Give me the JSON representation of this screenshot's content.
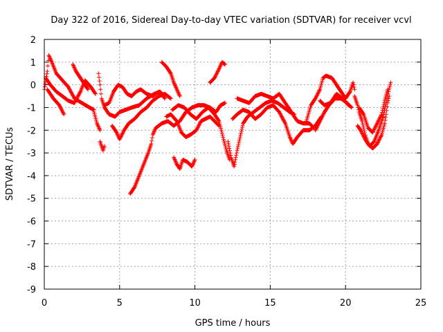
{
  "chart_data": {
    "type": "scatter",
    "title": "Day 322 of 2016, Sidereal Day-to-day VTEC variation (SDTVAR) for receiver vcvl",
    "xlabel": "GPS time / hours",
    "ylabel": "SDTVAR / TECUs",
    "xlim": [
      0,
      25
    ],
    "ylim": [
      -9,
      2
    ],
    "xticks": [
      "0",
      "5",
      "10",
      "15",
      "20",
      "25"
    ],
    "yticks": [
      "2",
      "1",
      "0",
      "-1",
      "-2",
      "-3",
      "-4",
      "-5",
      "-6",
      "-7",
      "-8",
      "-9"
    ],
    "grid": true,
    "marker": "+",
    "color": "#ff0000",
    "series": [
      {
        "name": "SDTVAR",
        "tracks": [
          [
            [
              0.0,
              -0.2
            ],
            [
              0.2,
              0.6
            ],
            [
              0.3,
              1.3
            ],
            [
              0.5,
              1.0
            ],
            [
              0.8,
              0.5
            ],
            [
              1.2,
              0.2
            ],
            [
              1.6,
              -0.1
            ],
            [
              2.0,
              -0.6
            ],
            [
              2.5,
              -0.8
            ],
            [
              3.0,
              -1.0
            ],
            [
              3.3,
              -1.1
            ]
          ],
          [
            [
              0.1,
              0.3
            ],
            [
              0.4,
              0.0
            ],
            [
              0.8,
              -0.3
            ],
            [
              1.2,
              -0.5
            ],
            [
              1.6,
              -0.7
            ],
            [
              2.0,
              -0.8
            ],
            [
              2.4,
              -0.3
            ],
            [
              2.7,
              0.2
            ],
            [
              3.1,
              -0.1
            ],
            [
              3.4,
              -0.4
            ]
          ],
          [
            [
              0.2,
              -0.2
            ],
            [
              0.6,
              -0.6
            ],
            [
              1.0,
              -0.9
            ],
            [
              1.3,
              -1.3
            ]
          ],
          [
            [
              1.9,
              0.9
            ],
            [
              2.1,
              0.6
            ],
            [
              2.4,
              0.3
            ],
            [
              2.7,
              0.0
            ],
            [
              2.9,
              -0.2
            ]
          ],
          [
            [
              3.3,
              -1.2
            ],
            [
              3.5,
              -1.7
            ],
            [
              3.7,
              -2.0
            ]
          ],
          [
            [
              3.6,
              0.5
            ],
            [
              3.7,
              0.0
            ],
            [
              3.8,
              -0.6
            ],
            [
              4.0,
              -1.0
            ],
            [
              4.3,
              -1.3
            ],
            [
              4.7,
              -1.4
            ],
            [
              5.0,
              -1.2
            ],
            [
              5.4,
              -1.1
            ],
            [
              5.8,
              -1.0
            ],
            [
              6.3,
              -0.9
            ],
            [
              6.8,
              -0.6
            ],
            [
              7.3,
              -0.4
            ],
            [
              7.7,
              -0.3
            ],
            [
              8.0,
              -0.6
            ]
          ],
          [
            [
              3.7,
              -2.5
            ],
            [
              3.9,
              -2.9
            ],
            [
              4.0,
              -2.7
            ]
          ],
          [
            [
              4.0,
              -0.9
            ],
            [
              4.3,
              -0.8
            ],
            [
              4.6,
              -0.3
            ],
            [
              4.9,
              0.0
            ],
            [
              5.2,
              -0.1
            ],
            [
              5.5,
              -0.4
            ],
            [
              5.8,
              -0.5
            ],
            [
              6.1,
              -0.3
            ],
            [
              6.4,
              -0.2
            ],
            [
              6.8,
              -0.4
            ],
            [
              7.2,
              -0.5
            ],
            [
              7.6,
              -0.3
            ],
            [
              7.9,
              -0.5
            ]
          ],
          [
            [
              4.5,
              -1.8
            ],
            [
              4.8,
              -2.1
            ],
            [
              5.0,
              -2.4
            ],
            [
              5.3,
              -2.0
            ],
            [
              5.6,
              -1.7
            ],
            [
              6.0,
              -1.5
            ],
            [
              6.4,
              -1.2
            ],
            [
              6.8,
              -1.0
            ],
            [
              7.2,
              -0.7
            ],
            [
              7.6,
              -0.5
            ],
            [
              8.0,
              -0.4
            ],
            [
              8.4,
              -0.6
            ]
          ],
          [
            [
              5.7,
              -4.8
            ],
            [
              6.0,
              -4.5
            ],
            [
              6.3,
              -4.0
            ],
            [
              6.6,
              -3.5
            ],
            [
              6.9,
              -3.0
            ],
            [
              7.1,
              -2.6
            ],
            [
              7.2,
              -2.2
            ],
            [
              7.4,
              -1.9
            ],
            [
              7.8,
              -1.7
            ],
            [
              8.2,
              -1.6
            ],
            [
              8.6,
              -1.8
            ],
            [
              9.0,
              -1.6
            ],
            [
              9.4,
              -1.2
            ],
            [
              9.8,
              -1.0
            ],
            [
              10.2,
              -0.9
            ],
            [
              10.6,
              -0.9
            ],
            [
              11.0,
              -1.0
            ],
            [
              11.4,
              -1.2
            ],
            [
              11.7,
              -0.9
            ],
            [
              12.0,
              -0.8
            ]
          ],
          [
            [
              7.8,
              1.0
            ],
            [
              8.1,
              0.8
            ],
            [
              8.4,
              0.5
            ],
            [
              8.6,
              0.1
            ],
            [
              8.8,
              -0.2
            ],
            [
              9.0,
              -0.5
            ]
          ],
          [
            [
              8.1,
              -1.4
            ],
            [
              8.4,
              -1.3
            ],
            [
              8.8,
              -1.6
            ],
            [
              9.1,
              -2.1
            ],
            [
              9.4,
              -2.3
            ],
            [
              9.7,
              -2.2
            ],
            [
              10.1,
              -2.0
            ],
            [
              10.4,
              -1.6
            ],
            [
              10.7,
              -1.5
            ],
            [
              11.0,
              -1.4
            ],
            [
              11.3,
              -1.6
            ],
            [
              11.6,
              -1.8
            ]
          ],
          [
            [
              8.6,
              -3.2
            ],
            [
              8.8,
              -3.5
            ],
            [
              9.0,
              -3.7
            ],
            [
              9.2,
              -3.3
            ],
            [
              9.5,
              -3.4
            ],
            [
              9.8,
              -3.6
            ],
            [
              10.0,
              -3.3
            ]
          ],
          [
            [
              8.5,
              -1.1
            ],
            [
              8.9,
              -0.9
            ],
            [
              9.3,
              -1.0
            ],
            [
              9.7,
              -1.3
            ],
            [
              10.1,
              -1.5
            ],
            [
              10.5,
              -1.2
            ],
            [
              10.9,
              -1.0
            ],
            [
              11.3,
              -1.3
            ],
            [
              11.6,
              -1.6
            ],
            [
              11.9,
              -2.4
            ],
            [
              12.1,
              -2.9
            ],
            [
              12.3,
              -3.3
            ]
          ],
          [
            [
              11.0,
              0.1
            ],
            [
              11.3,
              0.3
            ],
            [
              11.6,
              0.7
            ],
            [
              11.8,
              1.0
            ],
            [
              12.0,
              0.9
            ]
          ],
          [
            [
              12.2,
              -2.5
            ],
            [
              12.4,
              -3.2
            ],
            [
              12.6,
              -3.6
            ],
            [
              12.8,
              -2.9
            ],
            [
              13.0,
              -2.3
            ],
            [
              13.2,
              -1.7
            ],
            [
              13.5,
              -1.4
            ],
            [
              13.9,
              -1.2
            ],
            [
              14.3,
              -1.0
            ],
            [
              14.7,
              -0.8
            ],
            [
              15.1,
              -0.7
            ],
            [
              15.5,
              -0.8
            ],
            [
              15.9,
              -1.0
            ],
            [
              16.3,
              -1.2
            ],
            [
              16.6,
              -1.3
            ]
          ],
          [
            [
              12.5,
              -1.5
            ],
            [
              12.8,
              -1.3
            ],
            [
              13.2,
              -1.1
            ],
            [
              13.6,
              -1.2
            ],
            [
              14.0,
              -1.5
            ],
            [
              14.4,
              -1.3
            ],
            [
              14.8,
              -1.0
            ],
            [
              15.2,
              -0.9
            ],
            [
              15.6,
              -1.2
            ],
            [
              16.0,
              -1.7
            ],
            [
              16.3,
              -2.3
            ],
            [
              16.5,
              -2.6
            ],
            [
              16.8,
              -2.3
            ],
            [
              17.2,
              -2.0
            ],
            [
              17.6,
              -2.0
            ],
            [
              18.0,
              -1.8
            ],
            [
              18.4,
              -1.4
            ]
          ],
          [
            [
              12.8,
              -0.6
            ],
            [
              13.2,
              -0.7
            ],
            [
              13.6,
              -0.8
            ],
            [
              14.0,
              -0.5
            ],
            [
              14.4,
              -0.4
            ],
            [
              14.8,
              -0.5
            ],
            [
              15.2,
              -0.6
            ],
            [
              15.6,
              -0.4
            ],
            [
              16.0,
              -0.8
            ],
            [
              16.4,
              -1.2
            ],
            [
              16.8,
              -1.6
            ],
            [
              17.2,
              -1.7
            ],
            [
              17.6,
              -1.7
            ],
            [
              17.9,
              -1.9
            ]
          ],
          [
            [
              17.4,
              -1.6
            ],
            [
              17.7,
              -0.9
            ],
            [
              18.0,
              -0.6
            ],
            [
              18.3,
              -0.2
            ],
            [
              18.5,
              0.3
            ],
            [
              18.7,
              0.4
            ],
            [
              19.1,
              0.3
            ],
            [
              19.4,
              0.0
            ],
            [
              19.7,
              -0.3
            ],
            [
              20.0,
              -0.6
            ],
            [
              20.3,
              -0.3
            ],
            [
              20.5,
              0.1
            ],
            [
              20.6,
              -0.2
            ]
          ],
          [
            [
              18.0,
              -2.0
            ],
            [
              18.3,
              -1.6
            ],
            [
              18.6,
              -1.2
            ],
            [
              18.9,
              -0.9
            ],
            [
              19.3,
              -0.6
            ],
            [
              19.7,
              -0.6
            ],
            [
              20.1,
              -0.8
            ],
            [
              20.4,
              -1.0
            ]
          ],
          [
            [
              18.3,
              -0.7
            ],
            [
              18.6,
              -0.9
            ],
            [
              19.0,
              -0.8
            ],
            [
              19.4,
              -0.4
            ],
            [
              19.8,
              -0.6
            ],
            [
              20.2,
              -0.9
            ]
          ],
          [
            [
              20.6,
              -0.5
            ],
            [
              20.8,
              -0.9
            ],
            [
              20.9,
              -1.2
            ],
            [
              21.1,
              -1.6
            ],
            [
              21.3,
              -2.2
            ],
            [
              21.5,
              -2.6
            ],
            [
              21.8,
              -2.8
            ],
            [
              22.1,
              -2.6
            ],
            [
              22.4,
              -2.2
            ],
            [
              22.6,
              -1.7
            ],
            [
              22.7,
              -1.3
            ],
            [
              22.8,
              -0.8
            ],
            [
              22.9,
              -0.5
            ]
          ],
          [
            [
              20.8,
              -1.8
            ],
            [
              21.0,
              -2.0
            ],
            [
              21.3,
              -2.4
            ],
            [
              21.6,
              -2.7
            ],
            [
              21.9,
              -2.5
            ],
            [
              22.2,
              -2.0
            ],
            [
              22.5,
              -1.4
            ],
            [
              22.7,
              -0.8
            ],
            [
              22.85,
              -0.3
            ],
            [
              23.0,
              0.1
            ]
          ],
          [
            [
              20.9,
              -1.0
            ],
            [
              21.2,
              -1.3
            ],
            [
              21.5,
              -1.9
            ],
            [
              21.8,
              -2.1
            ],
            [
              22.1,
              -1.7
            ],
            [
              22.4,
              -1.3
            ],
            [
              22.6,
              -0.7
            ],
            [
              22.8,
              -0.2
            ]
          ]
        ]
      }
    ]
  }
}
